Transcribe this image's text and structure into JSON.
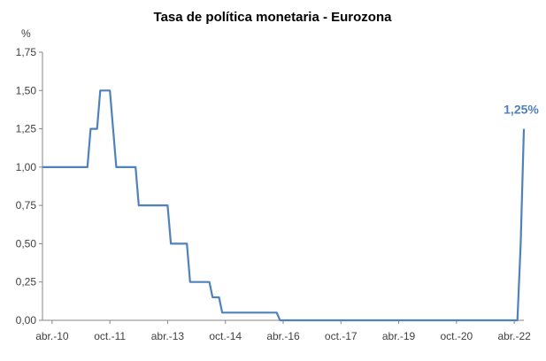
{
  "chart_data": {
    "type": "line",
    "title": "Tasa de política monetaria - Eurozona",
    "ylabel": "%",
    "ylim": [
      0,
      1.75
    ],
    "yticks": [
      0,
      0.25,
      0.5,
      0.75,
      1.0,
      1.25,
      1.5,
      1.75
    ],
    "ytick_labels": [
      "0,00",
      "0,25",
      "0,50",
      "0,75",
      "1,00",
      "1,25",
      "1,50",
      "1,75"
    ],
    "xlim": [
      "2010-01",
      "2022-07"
    ],
    "xticks": [
      "2010-04",
      "2011-10",
      "2013-04",
      "2014-10",
      "2016-04",
      "2017-10",
      "2019-04",
      "2020-10",
      "2022-04"
    ],
    "xtick_labels": [
      "abr.-10",
      "oct.-11",
      "abr.-13",
      "oct.-14",
      "abr.-16",
      "oct.-17",
      "abr.-19",
      "oct.-20",
      "abr.-22"
    ],
    "grid": false,
    "line_color": "#4F81BD",
    "end_label": "1,25%",
    "series": [
      {
        "points": [
          [
            "2010-01",
            1.0
          ],
          [
            "2011-03",
            1.0
          ],
          [
            "2011-04",
            1.25
          ],
          [
            "2011-06",
            1.25
          ],
          [
            "2011-07",
            1.5
          ],
          [
            "2011-10",
            1.5
          ],
          [
            "2011-12",
            1.0
          ],
          [
            "2012-06",
            1.0
          ],
          [
            "2012-07",
            0.75
          ],
          [
            "2013-04",
            0.75
          ],
          [
            "2013-05",
            0.5
          ],
          [
            "2013-10",
            0.5
          ],
          [
            "2013-11",
            0.25
          ],
          [
            "2014-05",
            0.25
          ],
          [
            "2014-06",
            0.15
          ],
          [
            "2014-08",
            0.15
          ],
          [
            "2014-09",
            0.05
          ],
          [
            "2016-02",
            0.05
          ],
          [
            "2016-03",
            0.0
          ],
          [
            "2022-05",
            0.0
          ],
          [
            "2022-06",
            0.5
          ],
          [
            "2022-07",
            1.25
          ]
        ]
      }
    ]
  }
}
